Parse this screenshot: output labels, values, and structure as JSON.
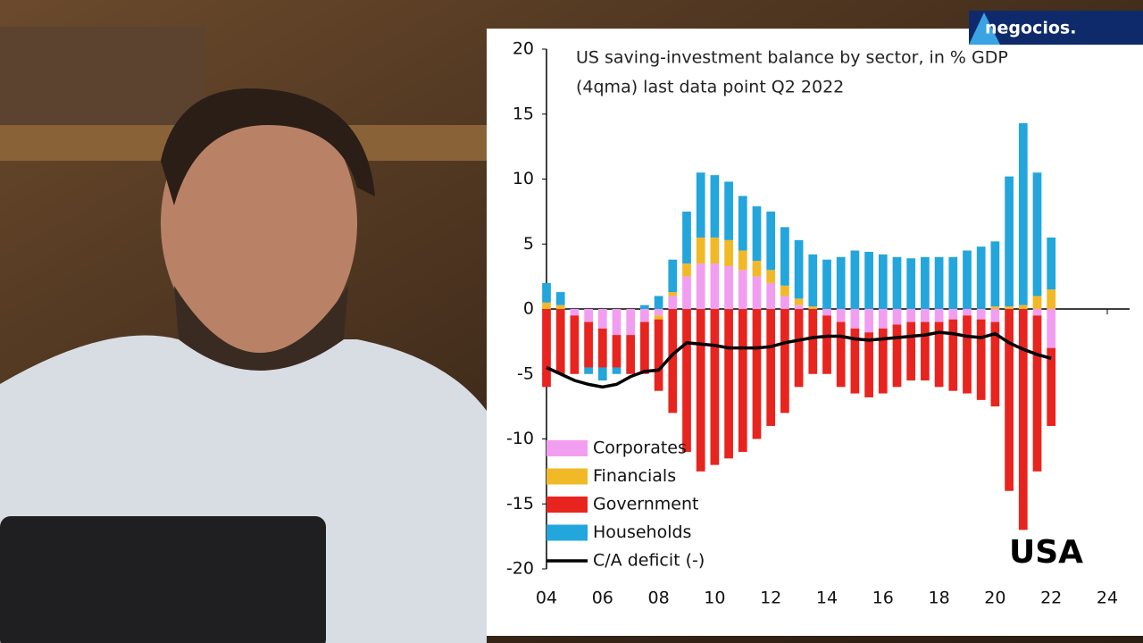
{
  "logo": "negocios.",
  "chart_data": {
    "type": "bar",
    "stacked": true,
    "title": "US saving-investment balance by sector, in % GDP",
    "subtitle": "(4qma) last data point Q2 2022",
    "annotation": "USA",
    "legend": "lower left",
    "x": [
      4,
      4.5,
      5,
      5.5,
      6,
      6.5,
      7,
      7.5,
      8,
      8.5,
      9,
      9.5,
      10,
      10.5,
      11,
      11.5,
      12,
      12.5,
      13,
      13.5,
      14,
      14.5,
      15,
      15.5,
      16,
      16.5,
      17,
      17.5,
      18,
      18.5,
      19,
      19.5,
      20,
      20.5,
      21,
      21.5,
      22
    ],
    "xlim": [
      4,
      24
    ],
    "xticks": [
      {
        "value": 4,
        "label": "04"
      },
      {
        "value": 6,
        "label": "06"
      },
      {
        "value": 8,
        "label": "08"
      },
      10,
      12,
      14,
      16,
      18,
      20,
      22,
      24
    ],
    "ylim": [
      -20,
      20
    ],
    "yticks": [
      -20,
      -15,
      -10,
      -5,
      0,
      5,
      10,
      15,
      20
    ],
    "series": [
      {
        "name": "Corporates",
        "color": "#f29ef0",
        "style": "bar",
        "values": [
          0,
          0,
          -0.5,
          -1,
          -1.5,
          -2,
          -2,
          -1,
          -0.5,
          1,
          2.5,
          3.5,
          3.5,
          3.3,
          3,
          2.5,
          2,
          1,
          0.3,
          0,
          -0.5,
          -1,
          -1.5,
          -1.8,
          -1.5,
          -1.2,
          -1,
          -1,
          -1,
          -0.8,
          -0.5,
          -0.8,
          -1,
          0,
          0,
          -0.5,
          -3
        ]
      },
      {
        "name": "Financials",
        "color": "#f2b927",
        "style": "bar",
        "values": [
          0.5,
          0.3,
          0,
          0,
          0,
          0,
          0,
          0,
          -0.3,
          0.3,
          1,
          2,
          2,
          2,
          1.5,
          1.2,
          1,
          0.8,
          0.5,
          0.2,
          0,
          0,
          0,
          0,
          0,
          0,
          0,
          0,
          0,
          0,
          0,
          0,
          0.2,
          0.2,
          0.3,
          1,
          1.5
        ]
      },
      {
        "name": "Government",
        "color": "#e8241f",
        "style": "bar",
        "values": [
          -6,
          -5,
          -4.5,
          -3.5,
          -3,
          -2.5,
          -3,
          -4,
          -5.5,
          -8,
          -11,
          -12.5,
          -12,
          -11.5,
          -11,
          -10,
          -9,
          -8,
          -6,
          -5,
          -4.5,
          -5,
          -5,
          -5,
          -5,
          -4.8,
          -4.5,
          -4.5,
          -5,
          -5.5,
          -6,
          -6.2,
          -6.5,
          -14,
          -17,
          -12,
          -6
        ]
      },
      {
        "name": "Households",
        "color": "#23a6db",
        "style": "bar",
        "values": [
          1.5,
          1,
          0,
          -0.5,
          -1,
          -0.5,
          0,
          0.3,
          1,
          2.5,
          4,
          5,
          4.8,
          4.5,
          4.2,
          4.2,
          4.5,
          4.5,
          4.5,
          4,
          3.8,
          4,
          4.5,
          4.4,
          4.2,
          4,
          3.9,
          4,
          4,
          4,
          4.5,
          4.8,
          5,
          10,
          14,
          9.5,
          4
        ]
      },
      {
        "name": "C/A deficit (-)",
        "color": "#000000",
        "style": "line",
        "values": [
          -4.5,
          -5,
          -5.5,
          -5.8,
          -6,
          -5.8,
          -5.2,
          -4.8,
          -4.7,
          -3.5,
          -2.6,
          -2.7,
          -2.8,
          -3,
          -3,
          -3,
          -2.9,
          -2.6,
          -2.4,
          -2.2,
          -2.1,
          -2.1,
          -2.3,
          -2.4,
          -2.3,
          -2.2,
          -2.1,
          -2,
          -1.8,
          -1.9,
          -2.1,
          -2.2,
          -1.9,
          -2.6,
          -3.1,
          -3.5,
          -3.8
        ]
      }
    ]
  }
}
